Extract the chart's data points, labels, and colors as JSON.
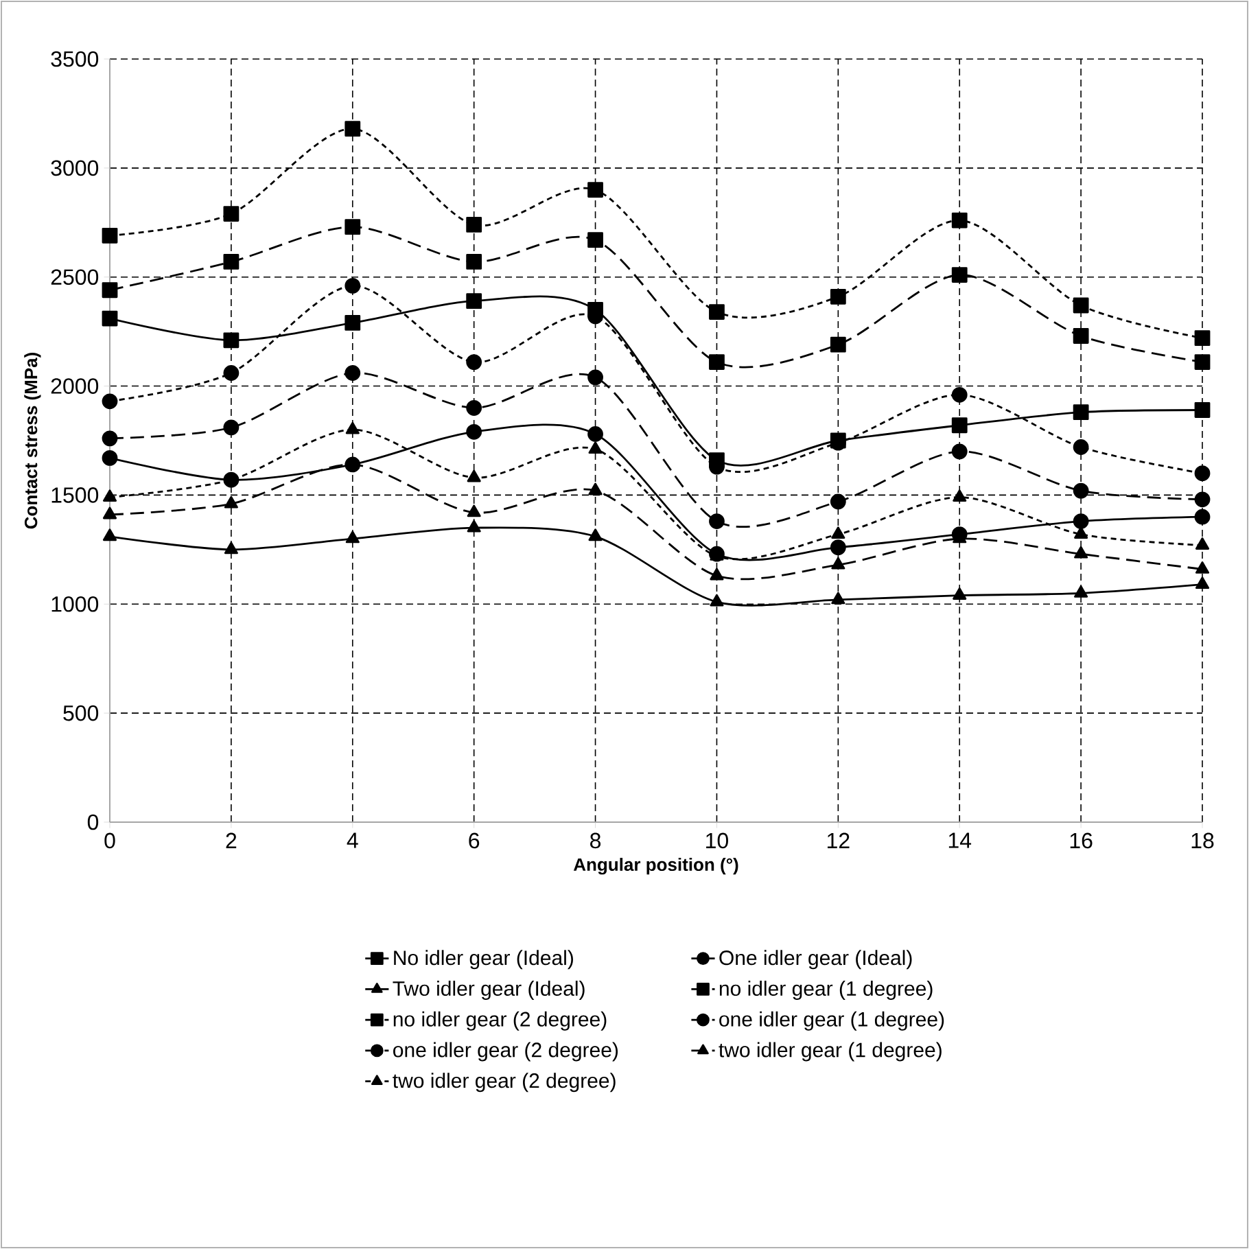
{
  "chart_data": {
    "type": "line",
    "xlabel": "Angular position (°)",
    "ylabel": "Contact stress (MPa)",
    "x": [
      0,
      2,
      4,
      6,
      8,
      10,
      12,
      14,
      16,
      18
    ],
    "xlim": [
      0,
      18
    ],
    "xticks": [
      0,
      2,
      4,
      6,
      8,
      10,
      12,
      14,
      16,
      18
    ],
    "ylim": [
      0,
      3500
    ],
    "yticks": [
      0,
      500,
      1000,
      1500,
      2000,
      2500,
      3000,
      3500
    ],
    "grid": true,
    "legend": "bottom",
    "series": [
      {
        "name": "No idler gear (Ideal)",
        "color": "#000000",
        "marker": "square",
        "line_style": "solid",
        "values": [
          2310,
          2210,
          2290,
          2390,
          2350,
          1660,
          1750,
          1820,
          1880,
          1890
        ]
      },
      {
        "name": "One idler gear (Ideal)",
        "color": "#000000",
        "marker": "circle",
        "line_style": "solid",
        "values": [
          1670,
          1570,
          1640,
          1790,
          1780,
          1230,
          1260,
          1320,
          1380,
          1400
        ]
      },
      {
        "name": "Two idler gear (Ideal)",
        "color": "#000000",
        "marker": "triangle",
        "line_style": "solid",
        "values": [
          1310,
          1250,
          1300,
          1350,
          1310,
          1010,
          1020,
          1040,
          1050,
          1090
        ]
      },
      {
        "name": "no idler gear (1 degree)",
        "color": "#000000",
        "marker": "square",
        "line_style": "dashed",
        "values": [
          2440,
          2570,
          2730,
          2570,
          2670,
          2110,
          2190,
          2510,
          2230,
          2110
        ]
      },
      {
        "name": "no idler gear (2 degree)",
        "color": "#000000",
        "marker": "square",
        "line_style": "dotted",
        "values": [
          2690,
          2790,
          3180,
          2740,
          2900,
          2340,
          2410,
          2760,
          2370,
          2220
        ]
      },
      {
        "name": "one idler gear (1 degree)",
        "color": "#000000",
        "marker": "circle",
        "line_style": "dashed",
        "values": [
          1760,
          1810,
          2060,
          1900,
          2040,
          1380,
          1470,
          1700,
          1520,
          1480
        ]
      },
      {
        "name": "one idler gear (2 degree)",
        "color": "#000000",
        "marker": "circle",
        "line_style": "dotted",
        "values": [
          1930,
          2060,
          2460,
          2110,
          2320,
          1630,
          1740,
          1960,
          1720,
          1600
        ]
      },
      {
        "name": "two idler gear (1 degree)",
        "color": "#000000",
        "marker": "triangle",
        "line_style": "dashed",
        "values": [
          1410,
          1460,
          1640,
          1420,
          1520,
          1130,
          1180,
          1300,
          1230,
          1160
        ]
      },
      {
        "name": "two idler gear (2 degree)",
        "color": "#000000",
        "marker": "triangle",
        "line_style": "dotted",
        "values": [
          1490,
          1570,
          1800,
          1580,
          1710,
          1220,
          1320,
          1490,
          1320,
          1270
        ]
      }
    ]
  }
}
